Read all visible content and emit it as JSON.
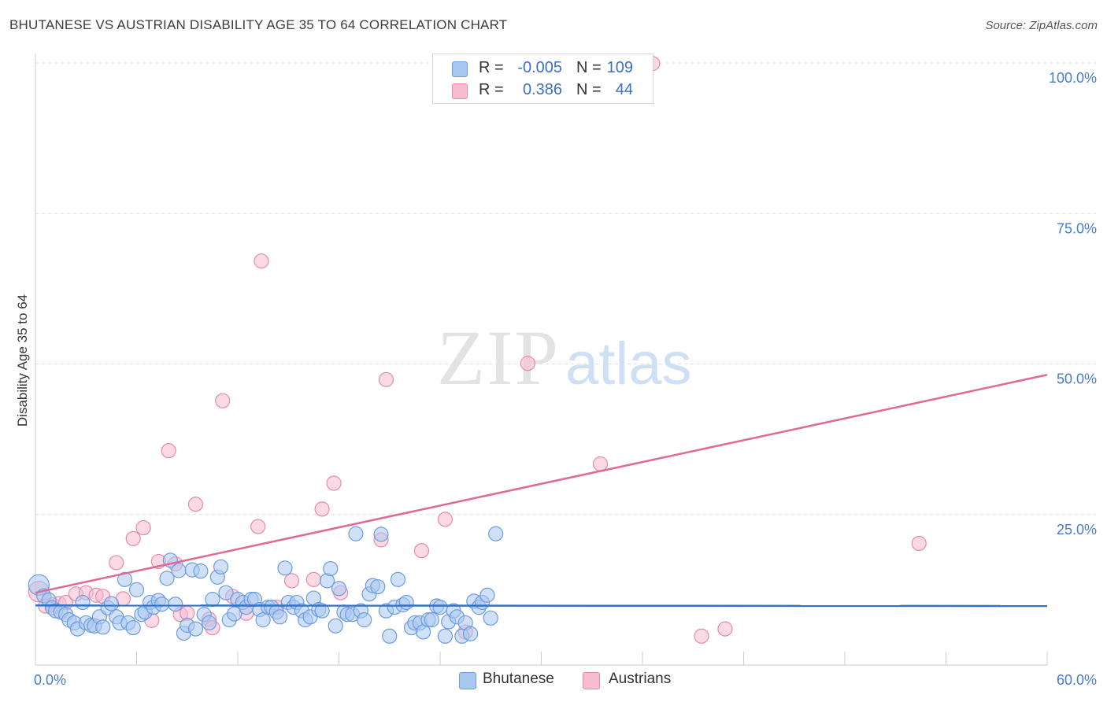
{
  "title": "BHUTANESE VS AUSTRIAN DISABILITY AGE 35 TO 64 CORRELATION CHART",
  "source": "Source: ZipAtlas.com",
  "watermark": {
    "zip": "ZIP",
    "atlas": "atlas"
  },
  "legend": {
    "rows": [
      {
        "r_label": "R =",
        "r_value": "-0.005",
        "n_label": "N =",
        "n_value": "109",
        "color": "#a9c8f0",
        "border": "#6d9be0"
      },
      {
        "r_label": "R =",
        "r_value": "0.386",
        "n_label": "N =",
        "n_value": "44",
        "color": "#f7bcd0",
        "border": "#e68aab"
      }
    ]
  },
  "bottom_legend": [
    {
      "label": "Bhutanese",
      "color": "#a9c8f0",
      "border": "#6d9be0"
    },
    {
      "label": "Austrians",
      "color": "#f7bcd0",
      "border": "#e68aab"
    }
  ],
  "chart_data": {
    "type": "scatter",
    "title": "BHUTANESE VS AUSTRIAN DISABILITY AGE 35 TO 64 CORRELATION CHART",
    "xlabel": "",
    "ylabel": "Disability Age 35 to 64",
    "xlim": [
      0,
      60
    ],
    "ylim": [
      0,
      100
    ],
    "x_tick_labels": [
      "0.0%",
      "60.0%"
    ],
    "y_tick_labels": [
      "25.0%",
      "50.0%",
      "75.0%",
      "100.0%"
    ],
    "y_ticks": [
      25,
      50,
      75,
      100
    ],
    "grid": true,
    "legend_position": "top-center",
    "series": [
      {
        "name": "Bhutanese",
        "color": "#6d9be0",
        "fill": "#a9c8f0",
        "trend": {
          "x": [
            0,
            60
          ],
          "y": [
            9.9,
            9.8
          ]
        },
        "points": [
          [
            0.2,
            13.3
          ],
          [
            0.5,
            11.5
          ],
          [
            0.8,
            10.8
          ],
          [
            1.0,
            9.5
          ],
          [
            1.2,
            9.0
          ],
          [
            1.5,
            8.8
          ],
          [
            1.8,
            8.4
          ],
          [
            2.0,
            7.5
          ],
          [
            2.3,
            7.0
          ],
          [
            2.5,
            6.0
          ],
          [
            2.8,
            10.4
          ],
          [
            3.0,
            7.0
          ],
          [
            3.3,
            6.6
          ],
          [
            3.5,
            6.5
          ],
          [
            3.8,
            8.0
          ],
          [
            4.0,
            6.3
          ],
          [
            4.3,
            9.5
          ],
          [
            4.5,
            10.2
          ],
          [
            4.8,
            8.0
          ],
          [
            5.0,
            7.0
          ],
          [
            5.3,
            14.2
          ],
          [
            5.5,
            7.0
          ],
          [
            5.8,
            6.2
          ],
          [
            6.0,
            12.5
          ],
          [
            6.3,
            8.4
          ],
          [
            6.5,
            8.8
          ],
          [
            6.8,
            10.4
          ],
          [
            7.0,
            9.6
          ],
          [
            7.3,
            10.7
          ],
          [
            7.5,
            10.1
          ],
          [
            7.8,
            14.4
          ],
          [
            8.0,
            17.4
          ],
          [
            8.3,
            10.1
          ],
          [
            8.5,
            15.7
          ],
          [
            8.8,
            5.3
          ],
          [
            9.0,
            6.6
          ],
          [
            9.3,
            15.8
          ],
          [
            9.5,
            6.0
          ],
          [
            9.8,
            15.6
          ],
          [
            10.0,
            8.4
          ],
          [
            10.3,
            7.0
          ],
          [
            10.5,
            10.9
          ],
          [
            10.8,
            14.6
          ],
          [
            11.0,
            16.3
          ],
          [
            11.3,
            12.0
          ],
          [
            11.5,
            7.5
          ],
          [
            11.8,
            8.5
          ],
          [
            12.0,
            10.9
          ],
          [
            12.3,
            10.4
          ],
          [
            12.5,
            9.6
          ],
          [
            12.8,
            10.9
          ],
          [
            13.0,
            10.9
          ],
          [
            13.3,
            9.2
          ],
          [
            13.5,
            7.5
          ],
          [
            13.8,
            9.6
          ],
          [
            14.0,
            9.6
          ],
          [
            14.3,
            8.8
          ],
          [
            14.5,
            8.0
          ],
          [
            14.8,
            16.1
          ],
          [
            15.0,
            10.4
          ],
          [
            15.3,
            9.6
          ],
          [
            15.5,
            10.4
          ],
          [
            15.8,
            9.0
          ],
          [
            16.0,
            7.5
          ],
          [
            16.3,
            8.0
          ],
          [
            16.5,
            11.1
          ],
          [
            16.8,
            9.2
          ],
          [
            17.0,
            9.0
          ],
          [
            17.3,
            14.0
          ],
          [
            17.5,
            16.0
          ],
          [
            17.8,
            6.5
          ],
          [
            18.0,
            12.7
          ],
          [
            18.3,
            8.8
          ],
          [
            18.5,
            8.4
          ],
          [
            18.8,
            8.4
          ],
          [
            19.0,
            21.8
          ],
          [
            19.3,
            9.0
          ],
          [
            19.5,
            7.5
          ],
          [
            19.8,
            11.8
          ],
          [
            20.0,
            13.2
          ],
          [
            20.3,
            13.0
          ],
          [
            20.5,
            21.7
          ],
          [
            20.8,
            9.0
          ],
          [
            21.0,
            4.8
          ],
          [
            21.3,
            9.6
          ],
          [
            21.5,
            14.2
          ],
          [
            21.8,
            10.0
          ],
          [
            22.0,
            10.4
          ],
          [
            22.3,
            6.2
          ],
          [
            22.5,
            7.0
          ],
          [
            22.8,
            7.0
          ],
          [
            23.0,
            5.5
          ],
          [
            23.3,
            7.5
          ],
          [
            23.5,
            7.5
          ],
          [
            23.8,
            9.8
          ],
          [
            24.0,
            9.6
          ],
          [
            24.3,
            4.8
          ],
          [
            24.5,
            7.2
          ],
          [
            24.8,
            9.0
          ],
          [
            25.0,
            8.0
          ],
          [
            25.3,
            4.8
          ],
          [
            25.5,
            7.0
          ],
          [
            25.8,
            5.2
          ],
          [
            26.0,
            10.6
          ],
          [
            26.3,
            9.6
          ],
          [
            26.5,
            10.4
          ],
          [
            26.8,
            11.6
          ],
          [
            27.0,
            7.8
          ],
          [
            27.3,
            21.8
          ]
        ]
      },
      {
        "name": "Austrians",
        "color": "#e68aab",
        "fill": "#f7bcd0",
        "trend": {
          "x": [
            0,
            60
          ],
          "y": [
            12.0,
            48.2
          ]
        },
        "points": [
          [
            0.2,
            12.2
          ],
          [
            0.6,
            9.8
          ],
          [
            1.0,
            10.0
          ],
          [
            1.4,
            10.2
          ],
          [
            1.8,
            10.4
          ],
          [
            2.4,
            11.8
          ],
          [
            3.0,
            12.0
          ],
          [
            3.6,
            11.6
          ],
          [
            4.0,
            11.4
          ],
          [
            4.8,
            17.0
          ],
          [
            5.2,
            11.0
          ],
          [
            5.8,
            21.0
          ],
          [
            6.4,
            22.8
          ],
          [
            6.9,
            7.4
          ],
          [
            7.3,
            17.2
          ],
          [
            7.9,
            35.6
          ],
          [
            8.3,
            16.8
          ],
          [
            8.6,
            8.4
          ],
          [
            9.0,
            8.6
          ],
          [
            9.5,
            26.7
          ],
          [
            10.3,
            7.6
          ],
          [
            10.5,
            6.2
          ],
          [
            11.1,
            43.9
          ],
          [
            11.7,
            11.4
          ],
          [
            12.5,
            8.6
          ],
          [
            13.2,
            23.0
          ],
          [
            13.4,
            67.1
          ],
          [
            14.3,
            9.6
          ],
          [
            15.2,
            14.0
          ],
          [
            16.5,
            14.2
          ],
          [
            17.0,
            25.9
          ],
          [
            17.7,
            30.2
          ],
          [
            18.1,
            12.0
          ],
          [
            20.5,
            20.8
          ],
          [
            20.8,
            47.4
          ],
          [
            22.9,
            19.0
          ],
          [
            24.3,
            24.2
          ],
          [
            25.5,
            5.5
          ],
          [
            29.2,
            50.1
          ],
          [
            33.5,
            33.4
          ],
          [
            36.6,
            99.9
          ],
          [
            39.5,
            4.8
          ],
          [
            40.9,
            6.0
          ],
          [
            52.4,
            20.2
          ]
        ]
      }
    ]
  }
}
